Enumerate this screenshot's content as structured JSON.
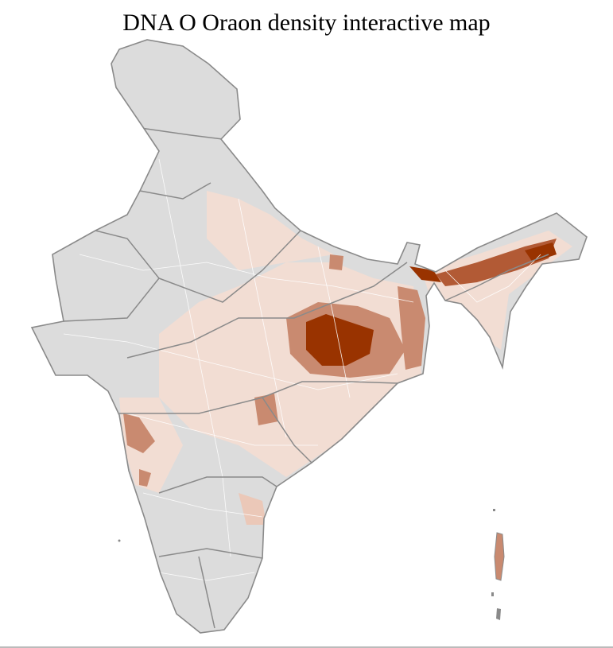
{
  "title": "DNA O Oraon density interactive map",
  "colors": {
    "no_data": "#dcdcdc",
    "very_low": "#f2ddd3",
    "low": "#ebc8b8",
    "medium": "#c98a70",
    "high": "#b25a35",
    "very_high": "#993300",
    "district_border": "#ffffff",
    "state_border": "#8a8a8a"
  }
}
